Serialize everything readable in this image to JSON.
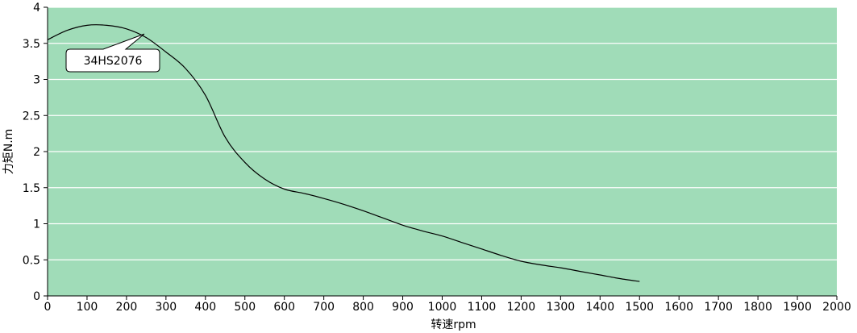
{
  "chart_data": {
    "type": "line",
    "title": "",
    "xlabel": "转速rpm",
    "ylabel": "力矩N.m",
    "xlim": [
      0,
      2000
    ],
    "ylim": [
      0,
      4
    ],
    "x_ticks": [
      0,
      100,
      200,
      300,
      400,
      500,
      600,
      700,
      800,
      900,
      1000,
      1100,
      1200,
      1300,
      1400,
      1500,
      1600,
      1700,
      1800,
      1900,
      2000
    ],
    "y_ticks": [
      0,
      0.5,
      1,
      1.5,
      2,
      2.5,
      3,
      3.5,
      4
    ],
    "x_tick_labels": [
      "0",
      "100",
      "200",
      "300",
      "400",
      "500",
      "600",
      "700",
      "800",
      "900",
      "1000",
      "1100",
      "1200",
      "1300",
      "1400",
      "1500",
      "1600",
      "1700",
      "1800",
      "1900",
      "2000"
    ],
    "y_tick_labels": [
      "0",
      "0.5",
      "1",
      "1.5",
      "2",
      "2.5",
      "3",
      "3.5",
      "4"
    ],
    "grid": "horizontal",
    "plot_background": "#a0dcb8",
    "grid_color": "#ffffff",
    "line_color": "#000000",
    "series": [
      {
        "name": "34HS2076",
        "x": [
          0,
          50,
          100,
          150,
          200,
          250,
          300,
          350,
          400,
          450,
          500,
          550,
          600,
          650,
          700,
          750,
          800,
          850,
          900,
          950,
          1000,
          1050,
          1100,
          1150,
          1200,
          1250,
          1300,
          1350,
          1400,
          1450,
          1500
        ],
        "y": [
          3.55,
          3.68,
          3.75,
          3.75,
          3.7,
          3.58,
          3.38,
          3.15,
          2.78,
          2.2,
          1.85,
          1.62,
          1.48,
          1.42,
          1.35,
          1.27,
          1.18,
          1.08,
          0.98,
          0.9,
          0.83,
          0.74,
          0.65,
          0.56,
          0.48,
          0.43,
          0.39,
          0.34,
          0.29,
          0.24,
          0.2
        ]
      }
    ],
    "annotations": [
      {
        "text": "34HS2076",
        "x": 245,
        "y": 3.63
      }
    ]
  }
}
